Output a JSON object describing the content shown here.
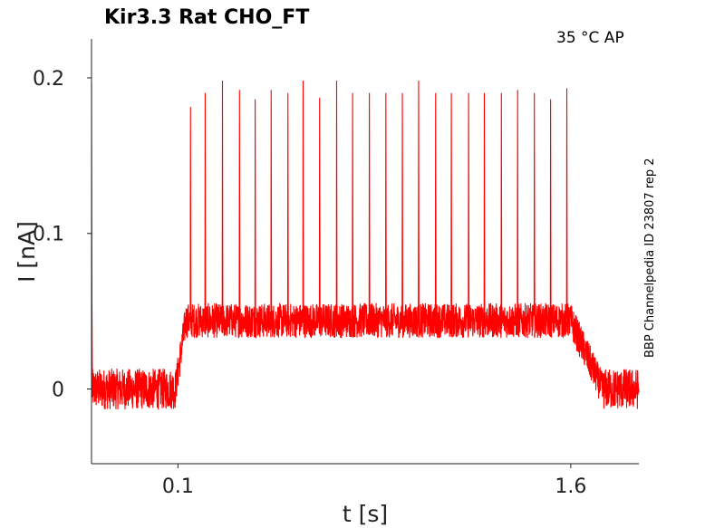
{
  "chart_data": {
    "type": "line",
    "title": "Kir3.3  Rat  CHO_FT",
    "annotation": "35 °C  AP",
    "side_note": "BBP Channelpedia ID 23807 rep 2",
    "xlabel": "t [s]",
    "ylabel": "I [nA]",
    "xlim": [
      -0.23,
      1.86
    ],
    "ylim": [
      -0.048,
      0.225
    ],
    "xticks": [
      0.1,
      1.6
    ],
    "xtick_labels": [
      "0.1",
      "1.6"
    ],
    "yticks": [
      0,
      0.1,
      0.2
    ],
    "ytick_labels": [
      "0",
      "0.1",
      "0.2"
    ],
    "grid": false,
    "series": [
      {
        "color": "#ff0000",
        "baseline_before": 0.0,
        "plateau": 0.044,
        "baseline_after": 0.0,
        "rise_time": [
          0.09,
          0.13
        ],
        "decay_time": [
          1.6,
          1.72
        ],
        "initial_transient": {
          "x": -0.23,
          "y": 0.197
        },
        "spikes": [
          {
            "x": 0.148,
            "y": 0.181
          },
          {
            "x": 0.204,
            "y": 0.19
          },
          {
            "x": 0.27,
            "y": 0.198
          },
          {
            "x": 0.335,
            "y": 0.192
          },
          {
            "x": 0.395,
            "y": 0.186
          },
          {
            "x": 0.456,
            "y": 0.192
          },
          {
            "x": 0.52,
            "y": 0.19
          },
          {
            "x": 0.578,
            "y": 0.198
          },
          {
            "x": 0.641,
            "y": 0.187
          },
          {
            "x": 0.706,
            "y": 0.198
          },
          {
            "x": 0.767,
            "y": 0.19
          },
          {
            "x": 0.831,
            "y": 0.19
          },
          {
            "x": 0.894,
            "y": 0.19
          },
          {
            "x": 0.957,
            "y": 0.19
          },
          {
            "x": 1.019,
            "y": 0.198
          },
          {
            "x": 1.084,
            "y": 0.19
          },
          {
            "x": 1.144,
            "y": 0.19
          },
          {
            "x": 1.21,
            "y": 0.19
          },
          {
            "x": 1.27,
            "y": 0.19
          },
          {
            "x": 1.335,
            "y": 0.19
          },
          {
            "x": 1.397,
            "y": 0.192
          },
          {
            "x": 1.461,
            "y": 0.19
          },
          {
            "x": 1.523,
            "y": 0.186
          },
          {
            "x": 1.585,
            "y": 0.193
          }
        ]
      }
    ]
  }
}
